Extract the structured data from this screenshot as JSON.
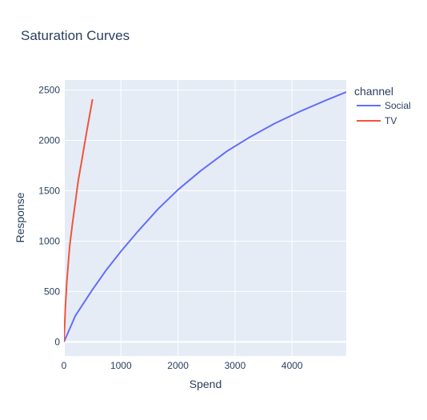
{
  "chart_data": {
    "type": "line",
    "title": "Saturation Curves",
    "xlabel": "Spend",
    "ylabel": "Response",
    "xlim": [
      0,
      4950
    ],
    "ylim": [
      -140,
      2600
    ],
    "xticks": [
      0,
      1000,
      2000,
      3000,
      4000
    ],
    "yticks": [
      0,
      500,
      1000,
      1500,
      2000,
      2500
    ],
    "grid": true,
    "legend": {
      "title": "channel",
      "placement": "top-right, outside plot"
    },
    "series": [
      {
        "name": "Social",
        "color": "#636efa",
        "x": [
          0,
          200,
          500,
          750,
          1000,
          1300,
          1650,
          2000,
          2400,
          2850,
          3250,
          3700,
          4150,
          4600,
          4950
        ],
        "y": [
          0,
          260,
          520,
          720,
          900,
          1100,
          1320,
          1510,
          1700,
          1890,
          2030,
          2170,
          2290,
          2400,
          2480
        ]
      },
      {
        "name": "TV",
        "color": "#ef553b",
        "x": [
          0,
          25,
          50,
          100,
          150,
          200,
          250,
          300,
          350,
          400,
          450,
          500
        ],
        "y": [
          0,
          350,
          600,
          950,
          1180,
          1390,
          1600,
          1760,
          1930,
          2090,
          2250,
          2410
        ]
      }
    ]
  }
}
